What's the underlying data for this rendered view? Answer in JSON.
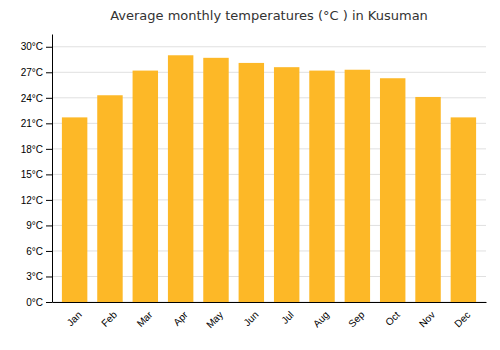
{
  "chart_data": {
    "type": "bar",
    "title": "Average monthly temperatures (°C ) in Kusuman",
    "categories": [
      "Jan",
      "Feb",
      "Mar",
      "Apr",
      "May",
      "Jun",
      "Jul",
      "Aug",
      "Sep",
      "Oct",
      "Nov",
      "Dec"
    ],
    "values": [
      21.7,
      24.3,
      27.2,
      29.0,
      28.7,
      28.1,
      27.6,
      27.2,
      27.3,
      26.3,
      24.1,
      21.7
    ],
    "color": "#FDB827",
    "ylim": [
      0,
      31.5
    ],
    "yticks": [
      {
        "value": 0,
        "label": "0°C"
      },
      {
        "value": 3,
        "label": "3°C"
      },
      {
        "value": 6,
        "label": "6°C"
      },
      {
        "value": 9,
        "label": "9°C"
      },
      {
        "value": 12,
        "label": "12°C"
      },
      {
        "value": 15,
        "label": "15°C"
      },
      {
        "value": 18,
        "label": "18°C"
      },
      {
        "value": 21,
        "label": "21°C"
      },
      {
        "value": 24,
        "label": "24°C"
      },
      {
        "value": 27,
        "label": "27°C"
      },
      {
        "value": 30,
        "label": "30°C"
      }
    ],
    "grid": true
  }
}
